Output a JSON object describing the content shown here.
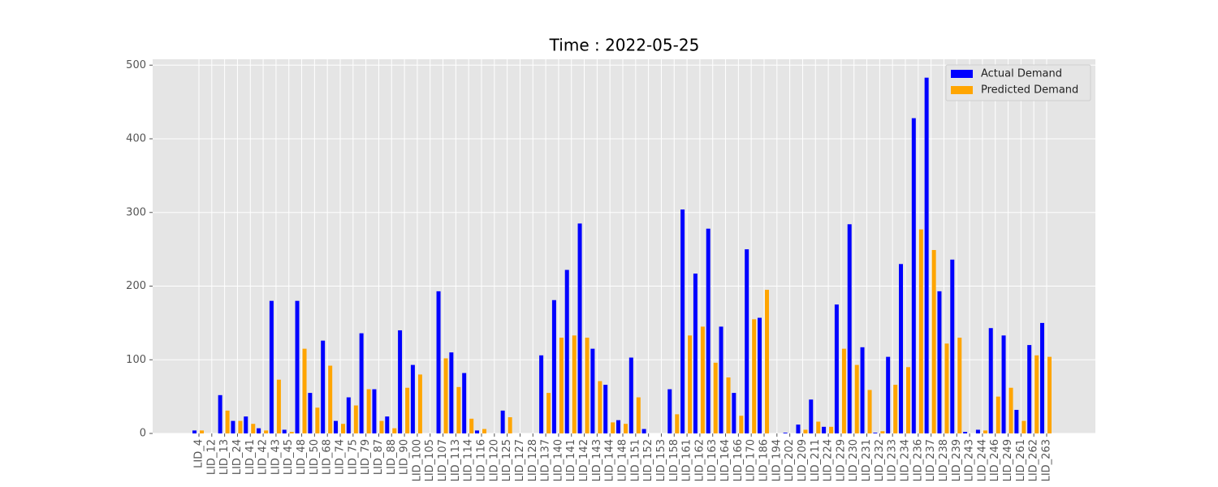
{
  "chart_data": {
    "type": "bar",
    "title": "Time : 2022-05-25",
    "categories": [
      "LID_4",
      "LID_12",
      "LID_13",
      "LID_24",
      "LID_41",
      "LID_42",
      "LID_43",
      "LID_45",
      "LID_48",
      "LID_50",
      "LID_68",
      "LID_74",
      "LID_75",
      "LID_79",
      "LID_87",
      "LID_88",
      "LID_90",
      "LID_100",
      "LID_105",
      "LID_107",
      "LID_113",
      "LID_114",
      "LID_116",
      "LID_120",
      "LID_125",
      "LID_127",
      "LID_128",
      "LID_137",
      "LID_140",
      "LID_141",
      "LID_142",
      "LID_143",
      "LID_144",
      "LID_148",
      "LID_151",
      "LID_152",
      "LID_153",
      "LID_158",
      "LID_161",
      "LID_162",
      "LID_163",
      "LID_164",
      "LID_166",
      "LID_170",
      "LID_186",
      "LID_194",
      "LID_202",
      "LID_209",
      "LID_211",
      "LID_224",
      "LID_229",
      "LID_230",
      "LID_231",
      "LID_232",
      "LID_233",
      "LID_234",
      "LID_236",
      "LID_237",
      "LID_238",
      "LID_239",
      "LID_243",
      "LID_244",
      "LID_246",
      "LID_249",
      "LID_261",
      "LID_262",
      "LID_263"
    ],
    "series": [
      {
        "name": "Actual Demand",
        "color": "#0000ff",
        "values": [
          4,
          0,
          52,
          17,
          23,
          7,
          180,
          5,
          180,
          55,
          126,
          17,
          49,
          136,
          60,
          23,
          140,
          93,
          0,
          193,
          110,
          82,
          4,
          0,
          31,
          0,
          0,
          106,
          181,
          222,
          285,
          115,
          66,
          18,
          103,
          6,
          0,
          60,
          304,
          217,
          278,
          145,
          55,
          250,
          157,
          0,
          1,
          12,
          46,
          9,
          175,
          284,
          117,
          1,
          104,
          230,
          428,
          483,
          193,
          236,
          2,
          5,
          143,
          133,
          32,
          120,
          150
        ]
      },
      {
        "name": "Predicted Demand",
        "color": "#ffa500",
        "values": [
          4,
          0,
          31,
          17,
          13,
          4,
          73,
          2,
          115,
          35,
          92,
          13,
          38,
          60,
          17,
          7,
          62,
          80,
          0,
          102,
          63,
          20,
          6,
          0,
          22,
          0,
          0,
          55,
          130,
          133,
          130,
          71,
          15,
          13,
          49,
          0,
          0,
          26,
          133,
          145,
          96,
          76,
          24,
          155,
          195,
          0,
          0,
          5,
          16,
          9,
          115,
          93,
          59,
          3,
          66,
          90,
          277,
          249,
          122,
          130,
          0,
          4,
          50,
          62,
          17,
          106,
          104
        ]
      }
    ],
    "ylim": [
      0,
      508
    ],
    "yticks": [
      0,
      100,
      200,
      300,
      400,
      500
    ],
    "grid": true,
    "legend": "upper right"
  }
}
